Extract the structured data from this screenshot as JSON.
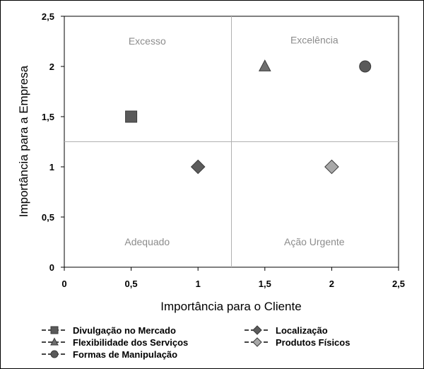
{
  "chart_data": {
    "type": "scatter",
    "xlabel": "Importância para o Cliente",
    "ylabel": "Importância para a Empresa",
    "xlim": [
      0,
      2.5
    ],
    "ylim": [
      0,
      2.5
    ],
    "x_ticks": [
      "0",
      "0,5",
      "1",
      "1,5",
      "2",
      "2,5"
    ],
    "y_ticks": [
      "0",
      "0,5",
      "1",
      "1,5",
      "2",
      "2,5"
    ],
    "divider_x": 1.25,
    "divider_y": 1.25,
    "grid": false,
    "legend_position": "bottom",
    "quadrant_labels": [
      {
        "text": "Excesso",
        "x": 0.62,
        "y": 2.22
      },
      {
        "text": "Excelência",
        "x": 1.87,
        "y": 2.23
      },
      {
        "text": "Adequado",
        "x": 0.62,
        "y": 0.22
      },
      {
        "text": "Ação Urgente",
        "x": 1.87,
        "y": 0.22
      }
    ],
    "series": [
      {
        "name": "Divulgação no Mercado",
        "marker": "square",
        "color": "#5a5a5a",
        "points": [
          {
            "x": 0.5,
            "y": 1.5
          }
        ]
      },
      {
        "name": "Localização",
        "marker": "diamond",
        "color": "#5c5c5c",
        "points": [
          {
            "x": 1.0,
            "y": 1.0
          }
        ]
      },
      {
        "name": "Flexibilidade dos Serviços",
        "marker": "triangle",
        "color": "#6e6e6e",
        "points": [
          {
            "x": 1.5,
            "y": 2.0
          }
        ]
      },
      {
        "name": "Produtos Físicos",
        "marker": "diamond",
        "color": "#a8a8a8",
        "points": [
          {
            "x": 2.0,
            "y": 1.0
          }
        ]
      },
      {
        "name": "Formas de Manipulação",
        "marker": "circle",
        "color": "#5a5a5a",
        "points": [
          {
            "x": 2.25,
            "y": 2.0
          }
        ]
      }
    ]
  }
}
